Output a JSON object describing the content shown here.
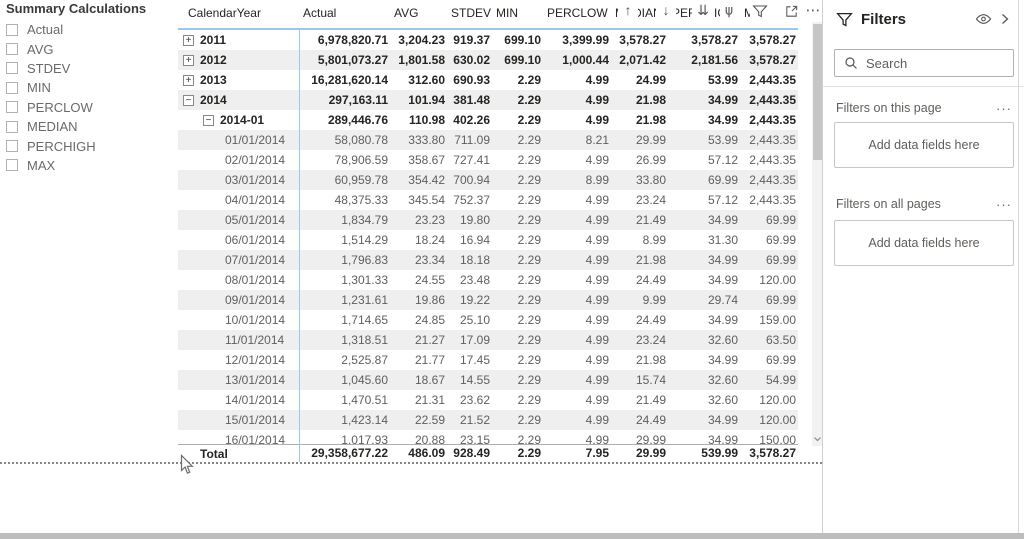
{
  "slicer": {
    "title": "Summary Calculations",
    "items": [
      {
        "label": "Actual",
        "checked": false
      },
      {
        "label": "AVG",
        "checked": false
      },
      {
        "label": "STDEV",
        "checked": false
      },
      {
        "label": "MIN",
        "checked": false
      },
      {
        "label": "PERCLOW",
        "checked": false
      },
      {
        "label": "MEDIAN",
        "checked": false
      },
      {
        "label": "PERCHIGH",
        "checked": false
      },
      {
        "label": "MAX",
        "checked": false
      }
    ]
  },
  "matrix": {
    "columns": [
      "CalendarYear",
      "Actual",
      "AVG",
      "STDEV",
      "MIN",
      "PERCLOW",
      "MEDIAN",
      "PERCHIGH",
      "MAX"
    ],
    "rows": [
      {
        "label": "2011",
        "level": 0,
        "toggle": "+",
        "bold": true,
        "values": [
          "6,978,820.71",
          "3,204.23",
          "919.37",
          "699.10",
          "3,399.99",
          "3,578.27",
          "3,578.27",
          "3,578.27"
        ]
      },
      {
        "label": "2012",
        "level": 0,
        "toggle": "+",
        "bold": true,
        "values": [
          "5,801,073.27",
          "1,801.58",
          "630.02",
          "699.10",
          "1,000.44",
          "2,071.42",
          "2,181.56",
          "3,578.27"
        ]
      },
      {
        "label": "2013",
        "level": 0,
        "toggle": "+",
        "bold": true,
        "values": [
          "16,281,620.14",
          "312.60",
          "690.93",
          "2.29",
          "4.99",
          "24.99",
          "53.99",
          "2,443.35"
        ]
      },
      {
        "label": "2014",
        "level": 0,
        "toggle": "-",
        "bold": true,
        "values": [
          "297,163.11",
          "101.94",
          "381.48",
          "2.29",
          "4.99",
          "21.98",
          "34.99",
          "2,443.35"
        ]
      },
      {
        "label": "2014-01",
        "level": 1,
        "toggle": "-",
        "bold": true,
        "values": [
          "289,446.76",
          "110.98",
          "402.26",
          "2.29",
          "4.99",
          "21.98",
          "34.99",
          "2,443.35"
        ]
      },
      {
        "label": "01/01/2014",
        "level": 2,
        "toggle": null,
        "bold": false,
        "values": [
          "58,080.78",
          "333.80",
          "711.09",
          "2.29",
          "8.21",
          "29.99",
          "53.99",
          "2,443.35"
        ]
      },
      {
        "label": "02/01/2014",
        "level": 2,
        "toggle": null,
        "bold": false,
        "values": [
          "78,906.59",
          "358.67",
          "727.41",
          "2.29",
          "4.99",
          "26.99",
          "57.12",
          "2,443.35"
        ]
      },
      {
        "label": "03/01/2014",
        "level": 2,
        "toggle": null,
        "bold": false,
        "values": [
          "60,959.78",
          "354.42",
          "700.94",
          "2.29",
          "8.99",
          "33.80",
          "69.99",
          "2,443.35"
        ]
      },
      {
        "label": "04/01/2014",
        "level": 2,
        "toggle": null,
        "bold": false,
        "values": [
          "48,375.33",
          "345.54",
          "752.37",
          "2.29",
          "4.99",
          "23.24",
          "57.12",
          "2,443.35"
        ]
      },
      {
        "label": "05/01/2014",
        "level": 2,
        "toggle": null,
        "bold": false,
        "values": [
          "1,834.79",
          "23.23",
          "19.80",
          "2.29",
          "4.99",
          "21.49",
          "34.99",
          "69.99"
        ]
      },
      {
        "label": "06/01/2014",
        "level": 2,
        "toggle": null,
        "bold": false,
        "values": [
          "1,514.29",
          "18.24",
          "16.94",
          "2.29",
          "4.99",
          "8.99",
          "31.30",
          "69.99"
        ]
      },
      {
        "label": "07/01/2014",
        "level": 2,
        "toggle": null,
        "bold": false,
        "values": [
          "1,796.83",
          "23.34",
          "18.18",
          "2.29",
          "4.99",
          "21.98",
          "34.99",
          "69.99"
        ]
      },
      {
        "label": "08/01/2014",
        "level": 2,
        "toggle": null,
        "bold": false,
        "values": [
          "1,301.33",
          "24.55",
          "23.48",
          "2.29",
          "4.99",
          "24.49",
          "34.99",
          "120.00"
        ]
      },
      {
        "label": "09/01/2014",
        "level": 2,
        "toggle": null,
        "bold": false,
        "values": [
          "1,231.61",
          "19.86",
          "19.22",
          "2.29",
          "4.99",
          "9.99",
          "29.74",
          "69.99"
        ]
      },
      {
        "label": "10/01/2014",
        "level": 2,
        "toggle": null,
        "bold": false,
        "values": [
          "1,714.65",
          "24.85",
          "25.10",
          "2.29",
          "4.99",
          "24.49",
          "34.99",
          "159.00"
        ]
      },
      {
        "label": "11/01/2014",
        "level": 2,
        "toggle": null,
        "bold": false,
        "values": [
          "1,318.51",
          "21.27",
          "17.09",
          "2.29",
          "4.99",
          "23.24",
          "32.60",
          "63.50"
        ]
      },
      {
        "label": "12/01/2014",
        "level": 2,
        "toggle": null,
        "bold": false,
        "values": [
          "2,525.87",
          "21.77",
          "17.45",
          "2.29",
          "4.99",
          "21.98",
          "34.99",
          "69.99"
        ]
      },
      {
        "label": "13/01/2014",
        "level": 2,
        "toggle": null,
        "bold": false,
        "values": [
          "1,045.60",
          "18.67",
          "14.55",
          "2.29",
          "4.99",
          "15.74",
          "32.60",
          "54.99"
        ]
      },
      {
        "label": "14/01/2014",
        "level": 2,
        "toggle": null,
        "bold": false,
        "values": [
          "1,470.51",
          "21.31",
          "23.62",
          "2.29",
          "4.99",
          "21.49",
          "32.60",
          "120.00"
        ]
      },
      {
        "label": "15/01/2014",
        "level": 2,
        "toggle": null,
        "bold": false,
        "values": [
          "1,423.14",
          "22.59",
          "21.52",
          "2.29",
          "4.99",
          "24.49",
          "34.99",
          "120.00"
        ]
      },
      {
        "label": "16/01/2014",
        "level": 2,
        "toggle": null,
        "bold": false,
        "values": [
          "1,017.93",
          "20.88",
          "23.15",
          "2.29",
          "4.99",
          "29.99",
          "34.99",
          "150.00"
        ]
      }
    ],
    "total": {
      "label": "Total",
      "values": [
        "29,358,677.22",
        "486.09",
        "928.49",
        "2.29",
        "7.95",
        "29.99",
        "539.99",
        "3,578.27"
      ]
    }
  },
  "visual_header": {
    "icons": [
      {
        "name": "drill-up-icon",
        "glyph": "↑"
      },
      {
        "name": "drill-down-icon",
        "glyph": "↓"
      },
      {
        "name": "expand-all-down-icon",
        "glyph": "⇊"
      },
      {
        "name": "expand-next-level-icon",
        "glyph": "⋔"
      },
      {
        "name": "more-options-icon",
        "glyph": "⋯"
      }
    ]
  },
  "filters_pane": {
    "title": "Filters",
    "search_placeholder": "Search",
    "sections": [
      {
        "label": "Filters on this page",
        "menu": "···",
        "dropzone": "Add data fields here"
      },
      {
        "label": "Filters on all pages",
        "menu": "···",
        "dropzone": "Add data fields here"
      }
    ]
  },
  "colors": {
    "header_accent": "#9cc6ec",
    "row_band": "#efefef",
    "bottom_bar": "#bdbdbd"
  }
}
